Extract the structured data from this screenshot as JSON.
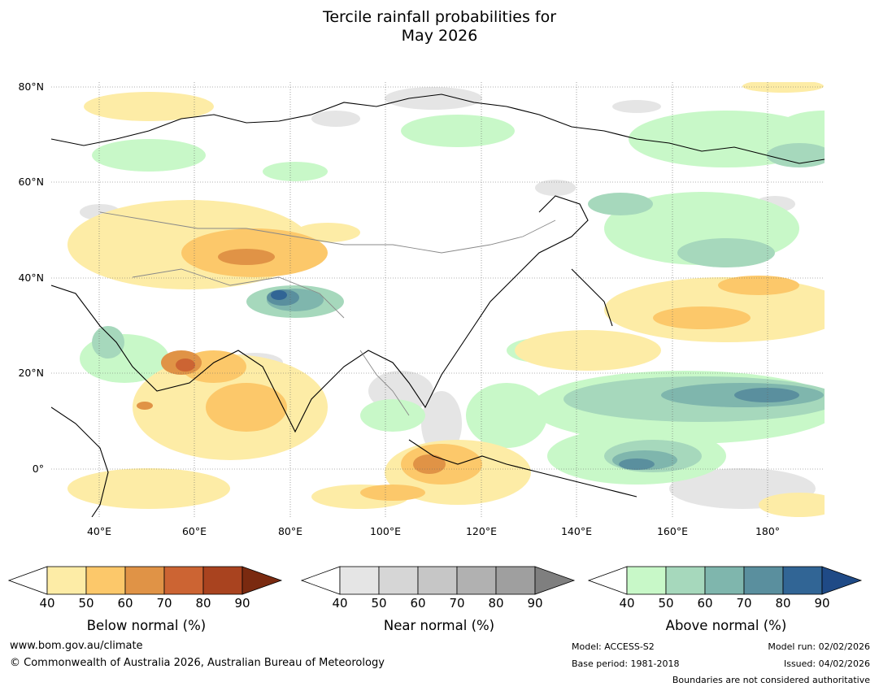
{
  "title": {
    "line1": "Tercile rainfall probabilities for",
    "line2": "May 2026"
  },
  "map": {
    "region": "Asia and Western Pacific",
    "lat_labels": [
      "80°N",
      "60°N",
      "40°N",
      "20°N",
      "0°"
    ],
    "lon_labels": [
      "40°E",
      "60°E",
      "80°E",
      "100°E",
      "120°E",
      "140°E",
      "160°E",
      "180°"
    ]
  },
  "colorbars": [
    {
      "title": "Below normal (%)",
      "ticks": [
        "40",
        "50",
        "60",
        "70",
        "80",
        "90"
      ],
      "colors": [
        "#ffffff",
        "#fdeca6",
        "#fcc86a",
        "#e09346",
        "#cc6433",
        "#a9431f",
        "#7a2a10"
      ]
    },
    {
      "title": "Near normal (%)",
      "ticks": [
        "40",
        "50",
        "60",
        "70",
        "80",
        "90"
      ],
      "colors": [
        "#ffffff",
        "#e5e5e5",
        "#d6d6d6",
        "#c6c6c6",
        "#b1b1b1",
        "#9f9f9f",
        "#7f7f7f"
      ]
    },
    {
      "title": "Above normal (%)",
      "ticks": [
        "40",
        "50",
        "60",
        "70",
        "80",
        "90"
      ],
      "colors": [
        "#ffffff",
        "#c8f8c8",
        "#a6d8bc",
        "#7fb6ad",
        "#5a8f9e",
        "#316595",
        "#1f4a86"
      ]
    }
  ],
  "footer": {
    "url": "www.bom.gov.au/climate",
    "copyright": "© Commonwealth of Australia 2026, Australian Bureau of Meteorology",
    "model": "Model: ACCESS-S2",
    "base_period": "Base period: 1981-2018",
    "model_run": "Model run: 02/02/2026",
    "issued": "Issued: 04/02/2026",
    "disclaimer": "Boundaries are not considered authoritative"
  }
}
